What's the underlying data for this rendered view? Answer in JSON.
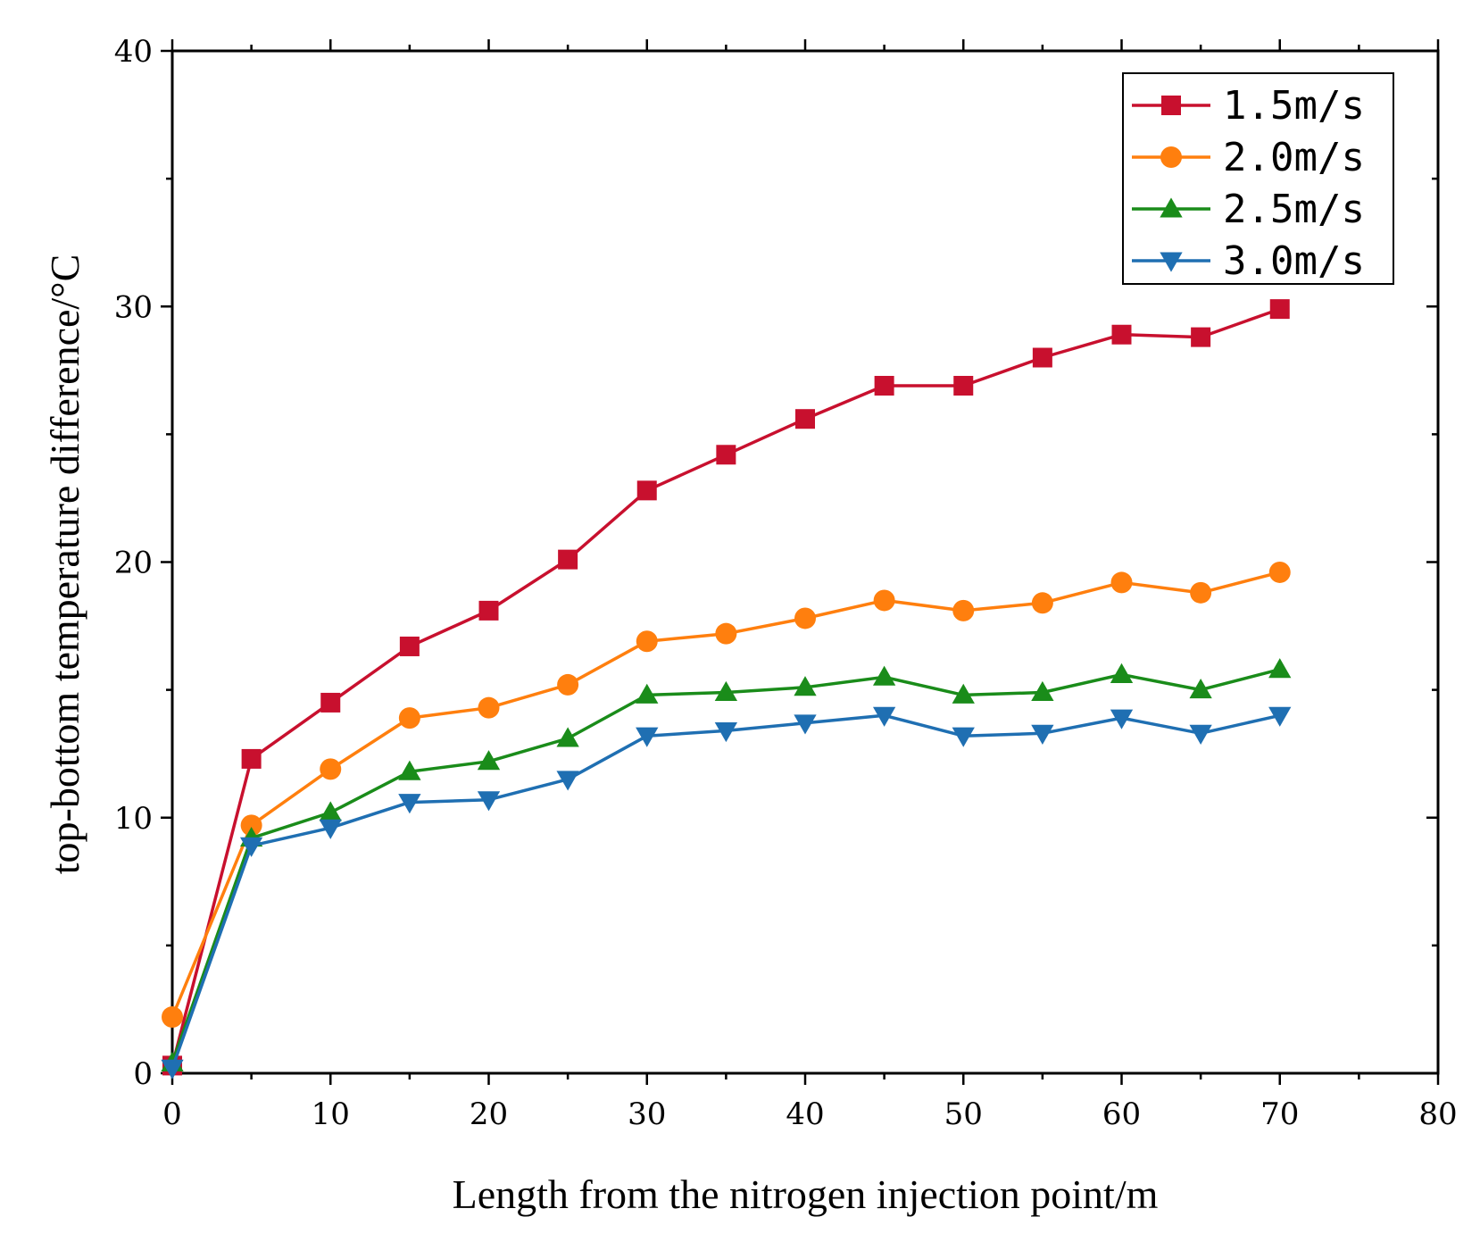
{
  "chart_data": {
    "type": "line",
    "xlabel": "Length from the nitrogen injection point/m",
    "ylabel": "top-bottom temperature difference/°C",
    "xlim": [
      0,
      80
    ],
    "ylim": [
      0,
      40
    ],
    "xticks": [
      0,
      10,
      20,
      30,
      40,
      50,
      60,
      70,
      80
    ],
    "yticks": [
      0,
      10,
      20,
      30,
      40
    ],
    "grid": false,
    "legend_position": "top-right",
    "x": [
      0,
      5,
      10,
      15,
      20,
      25,
      30,
      35,
      40,
      45,
      50,
      55,
      60,
      65,
      70
    ],
    "series": [
      {
        "name": "1.5m/s",
        "color": "#c8102e",
        "marker": "square",
        "values": [
          0.3,
          12.3,
          14.5,
          16.7,
          18.1,
          20.1,
          22.8,
          24.2,
          25.6,
          26.9,
          26.9,
          28.0,
          28.9,
          28.8,
          29.9
        ]
      },
      {
        "name": "2.0m/s",
        "color": "#ff7f0e",
        "marker": "circle",
        "values": [
          2.2,
          9.7,
          11.9,
          13.9,
          14.3,
          15.2,
          16.9,
          17.2,
          17.8,
          18.5,
          18.1,
          18.4,
          19.2,
          18.8,
          19.6
        ]
      },
      {
        "name": "2.5m/s",
        "color": "#1a8c1a",
        "marker": "triangle-up",
        "values": [
          0.4,
          9.2,
          10.2,
          11.8,
          12.2,
          13.1,
          14.8,
          14.9,
          15.1,
          15.5,
          14.8,
          14.9,
          15.6,
          15.0,
          15.8
        ]
      },
      {
        "name": "3.0m/s",
        "color": "#1f6fb2",
        "marker": "triangle-down",
        "values": [
          0.2,
          8.9,
          9.6,
          10.6,
          10.7,
          11.5,
          13.2,
          13.4,
          13.7,
          14.0,
          13.2,
          13.3,
          13.9,
          13.3,
          14.0
        ]
      }
    ]
  }
}
